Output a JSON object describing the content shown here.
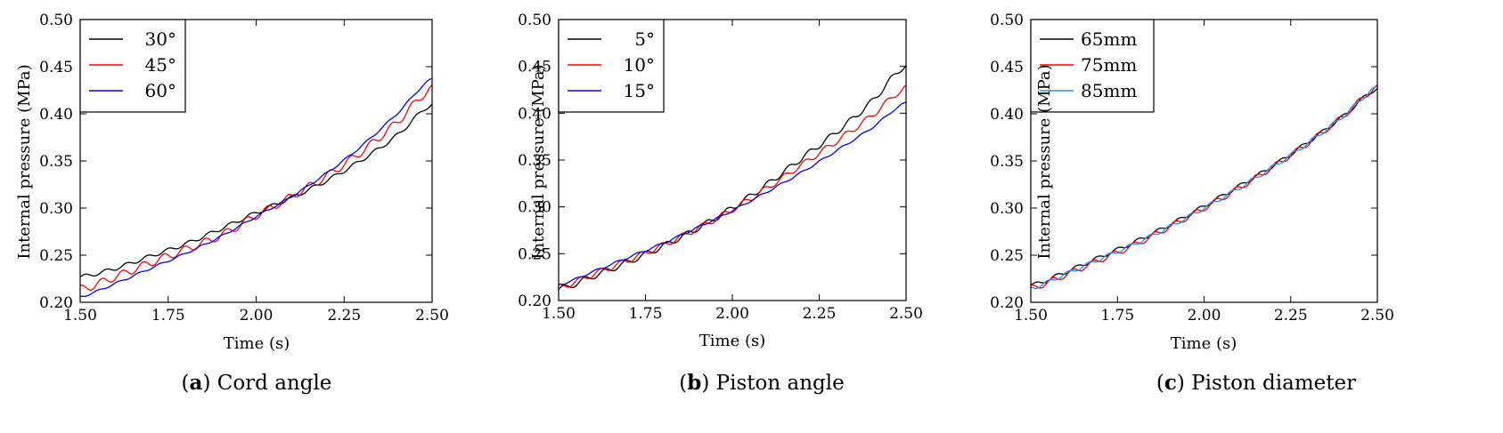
{
  "chart_data": [
    {
      "type": "line",
      "caption_letter": "a",
      "caption_text": " Cord angle",
      "xlabel": "Time (s)",
      "ylabel": "Internal pressure (MPa)",
      "xlim": [
        1.5,
        2.5
      ],
      "ylim": [
        0.2,
        0.5
      ],
      "x_ticks": [
        "1.50",
        "1.75",
        "2.00",
        "2.25",
        "2.50"
      ],
      "y_ticks": [
        "0.20",
        "0.25",
        "0.30",
        "0.35",
        "0.40",
        "0.45",
        "0.50"
      ],
      "legend_position": "top-left",
      "series": [
        {
          "name": "30°",
          "color": "#000000",
          "x": [
            1.5,
            1.6,
            1.7,
            1.8,
            1.9,
            2.0,
            2.1,
            2.2,
            2.3,
            2.4,
            2.5
          ],
          "values": [
            0.227,
            0.236,
            0.249,
            0.262,
            0.278,
            0.295,
            0.311,
            0.329,
            0.351,
            0.377,
            0.41
          ],
          "ripple": 0.002
        },
        {
          "name": "45°",
          "color": "#ff0000",
          "x": [
            1.5,
            1.6,
            1.7,
            1.8,
            1.9,
            2.0,
            2.1,
            2.2,
            2.3,
            2.4,
            2.5
          ],
          "values": [
            0.214,
            0.227,
            0.242,
            0.256,
            0.271,
            0.292,
            0.312,
            0.334,
            0.36,
            0.391,
            0.427
          ],
          "ripple": 0.004
        },
        {
          "name": "60°",
          "color": "#0000ff",
          "x": [
            1.5,
            1.6,
            1.7,
            1.8,
            1.9,
            2.0,
            2.1,
            2.2,
            2.3,
            2.4,
            2.5
          ],
          "values": [
            0.206,
            0.22,
            0.236,
            0.252,
            0.27,
            0.291,
            0.312,
            0.337,
            0.366,
            0.4,
            0.437
          ],
          "ripple": 0.001
        }
      ]
    },
    {
      "type": "line",
      "caption_letter": "b",
      "caption_text": " Piston angle",
      "xlabel": "Time (s)",
      "ylabel": "Internal pressure (MPa)",
      "xlim": [
        1.5,
        2.5
      ],
      "ylim": [
        0.2,
        0.5
      ],
      "x_ticks": [
        "1.50",
        "1.75",
        "2.00",
        "2.25",
        "2.50"
      ],
      "y_ticks": [
        "0.20",
        "0.25",
        "0.30",
        "0.35",
        "0.40",
        "0.45",
        "0.50"
      ],
      "legend_position": "top-left",
      "series": [
        {
          "name": "5°",
          "color": "#000000",
          "x": [
            1.5,
            1.6,
            1.7,
            1.8,
            1.9,
            2.0,
            2.1,
            2.2,
            2.3,
            2.4,
            2.5
          ],
          "values": [
            0.212,
            0.226,
            0.241,
            0.258,
            0.277,
            0.299,
            0.324,
            0.352,
            0.38,
            0.412,
            0.451
          ],
          "ripple": 0.003
        },
        {
          "name": "10°",
          "color": "#ff0000",
          "x": [
            1.5,
            1.6,
            1.7,
            1.8,
            1.9,
            2.0,
            2.1,
            2.2,
            2.3,
            2.4,
            2.5
          ],
          "values": [
            0.214,
            0.228,
            0.243,
            0.259,
            0.277,
            0.297,
            0.32,
            0.345,
            0.37,
            0.397,
            0.427
          ],
          "ripple": 0.003
        },
        {
          "name": "15°",
          "color": "#0000ff",
          "x": [
            1.5,
            1.6,
            1.7,
            1.8,
            1.9,
            2.0,
            2.1,
            2.2,
            2.3,
            2.4,
            2.5
          ],
          "values": [
            0.217,
            0.231,
            0.246,
            0.261,
            0.278,
            0.296,
            0.316,
            0.337,
            0.36,
            0.384,
            0.411
          ],
          "ripple": 0.001
        }
      ]
    },
    {
      "type": "line",
      "caption_letter": "c",
      "caption_text": " Piston diameter",
      "xlabel": "Time (s)",
      "ylabel": "Internal pressure (MPa)",
      "xlim": [
        1.5,
        2.5
      ],
      "ylim": [
        0.2,
        0.5
      ],
      "x_ticks": [
        "1.50",
        "1.75",
        "2.00",
        "2.25",
        "2.50"
      ],
      "y_ticks": [
        "0.20",
        "0.25",
        "0.30",
        "0.35",
        "0.40",
        "0.45",
        "0.50"
      ],
      "legend_position": "top-left",
      "series": [
        {
          "name": "65mm",
          "color": "#000000",
          "x": [
            1.5,
            1.6,
            1.7,
            1.8,
            1.9,
            2.0,
            2.1,
            2.2,
            2.3,
            2.4,
            2.5
          ],
          "values": [
            0.218,
            0.232,
            0.248,
            0.264,
            0.282,
            0.302,
            0.323,
            0.345,
            0.37,
            0.397,
            0.427
          ],
          "ripple": 0.002
        },
        {
          "name": "75mm",
          "color": "#ff0000",
          "x": [
            1.5,
            1.6,
            1.7,
            1.8,
            1.9,
            2.0,
            2.1,
            2.2,
            2.3,
            2.4,
            2.5
          ],
          "values": [
            0.215,
            0.229,
            0.245,
            0.261,
            0.28,
            0.3,
            0.321,
            0.344,
            0.369,
            0.397,
            0.428
          ],
          "ripple": 0.003
        },
        {
          "name": "85mm",
          "color": "#1e90ff",
          "x": [
            1.5,
            1.6,
            1.7,
            1.8,
            1.9,
            2.0,
            2.1,
            2.2,
            2.3,
            2.4,
            2.5
          ],
          "values": [
            0.215,
            0.23,
            0.246,
            0.262,
            0.28,
            0.3,
            0.321,
            0.344,
            0.369,
            0.397,
            0.428
          ],
          "ripple": 0.002
        }
      ]
    }
  ]
}
